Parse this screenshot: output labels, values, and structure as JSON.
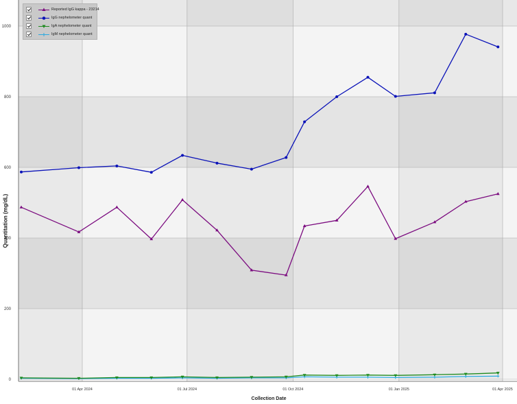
{
  "chart_data": {
    "type": "line",
    "title": "",
    "xlabel": "Collection Date",
    "ylabel": "Quantitation (mg/dL)",
    "ylim": [
      0,
      1000
    ],
    "yticks": [
      0,
      200,
      400,
      600,
      800,
      1000
    ],
    "xticks": [
      "01 Apr 2024",
      "01 Jul 2024",
      "01 Oct 2024",
      "01 Jan 2025",
      "01 Apr 2025"
    ],
    "x": [
      "2024-02-08",
      "2024-03-29",
      "2024-05-01",
      "2024-05-31",
      "2024-06-27",
      "2024-07-27",
      "2024-08-26",
      "2024-09-25",
      "2024-10-11",
      "2024-11-08",
      "2024-12-05",
      "2024-12-29",
      "2025-02-01",
      "2025-02-28",
      "2025-03-28"
    ],
    "grid": true,
    "legend_position": "top-left",
    "series": [
      {
        "name": "Reported IgG kappa - 23214",
        "color": "#7b0b7f",
        "marker": "triangle-up",
        "values": [
          487,
          417,
          487,
          397,
          508,
          422,
          309,
          295,
          434,
          450,
          546,
          398,
          445,
          503,
          525
        ]
      },
      {
        "name": "IgG nephelometer quant",
        "color": "#0a12b8",
        "marker": "circle",
        "values": [
          587,
          599,
          604,
          586,
          634,
          612,
          595,
          628,
          729,
          800,
          855,
          801,
          811,
          977,
          941
        ]
      },
      {
        "name": "IgA nephelometer quant",
        "color": "#1f8a1f",
        "marker": "triangle-down",
        "values": [
          4,
          3,
          5,
          5,
          7,
          5,
          6,
          7,
          12,
          11,
          12,
          11,
          13,
          15,
          18
        ]
      },
      {
        "name": "IgM nephelometer quant",
        "color": "#2aa9e0",
        "marker": "plus",
        "values": [
          3,
          2,
          3,
          3,
          4,
          3,
          4,
          4,
          7,
          6,
          6,
          5,
          6,
          8,
          9
        ]
      }
    ]
  }
}
